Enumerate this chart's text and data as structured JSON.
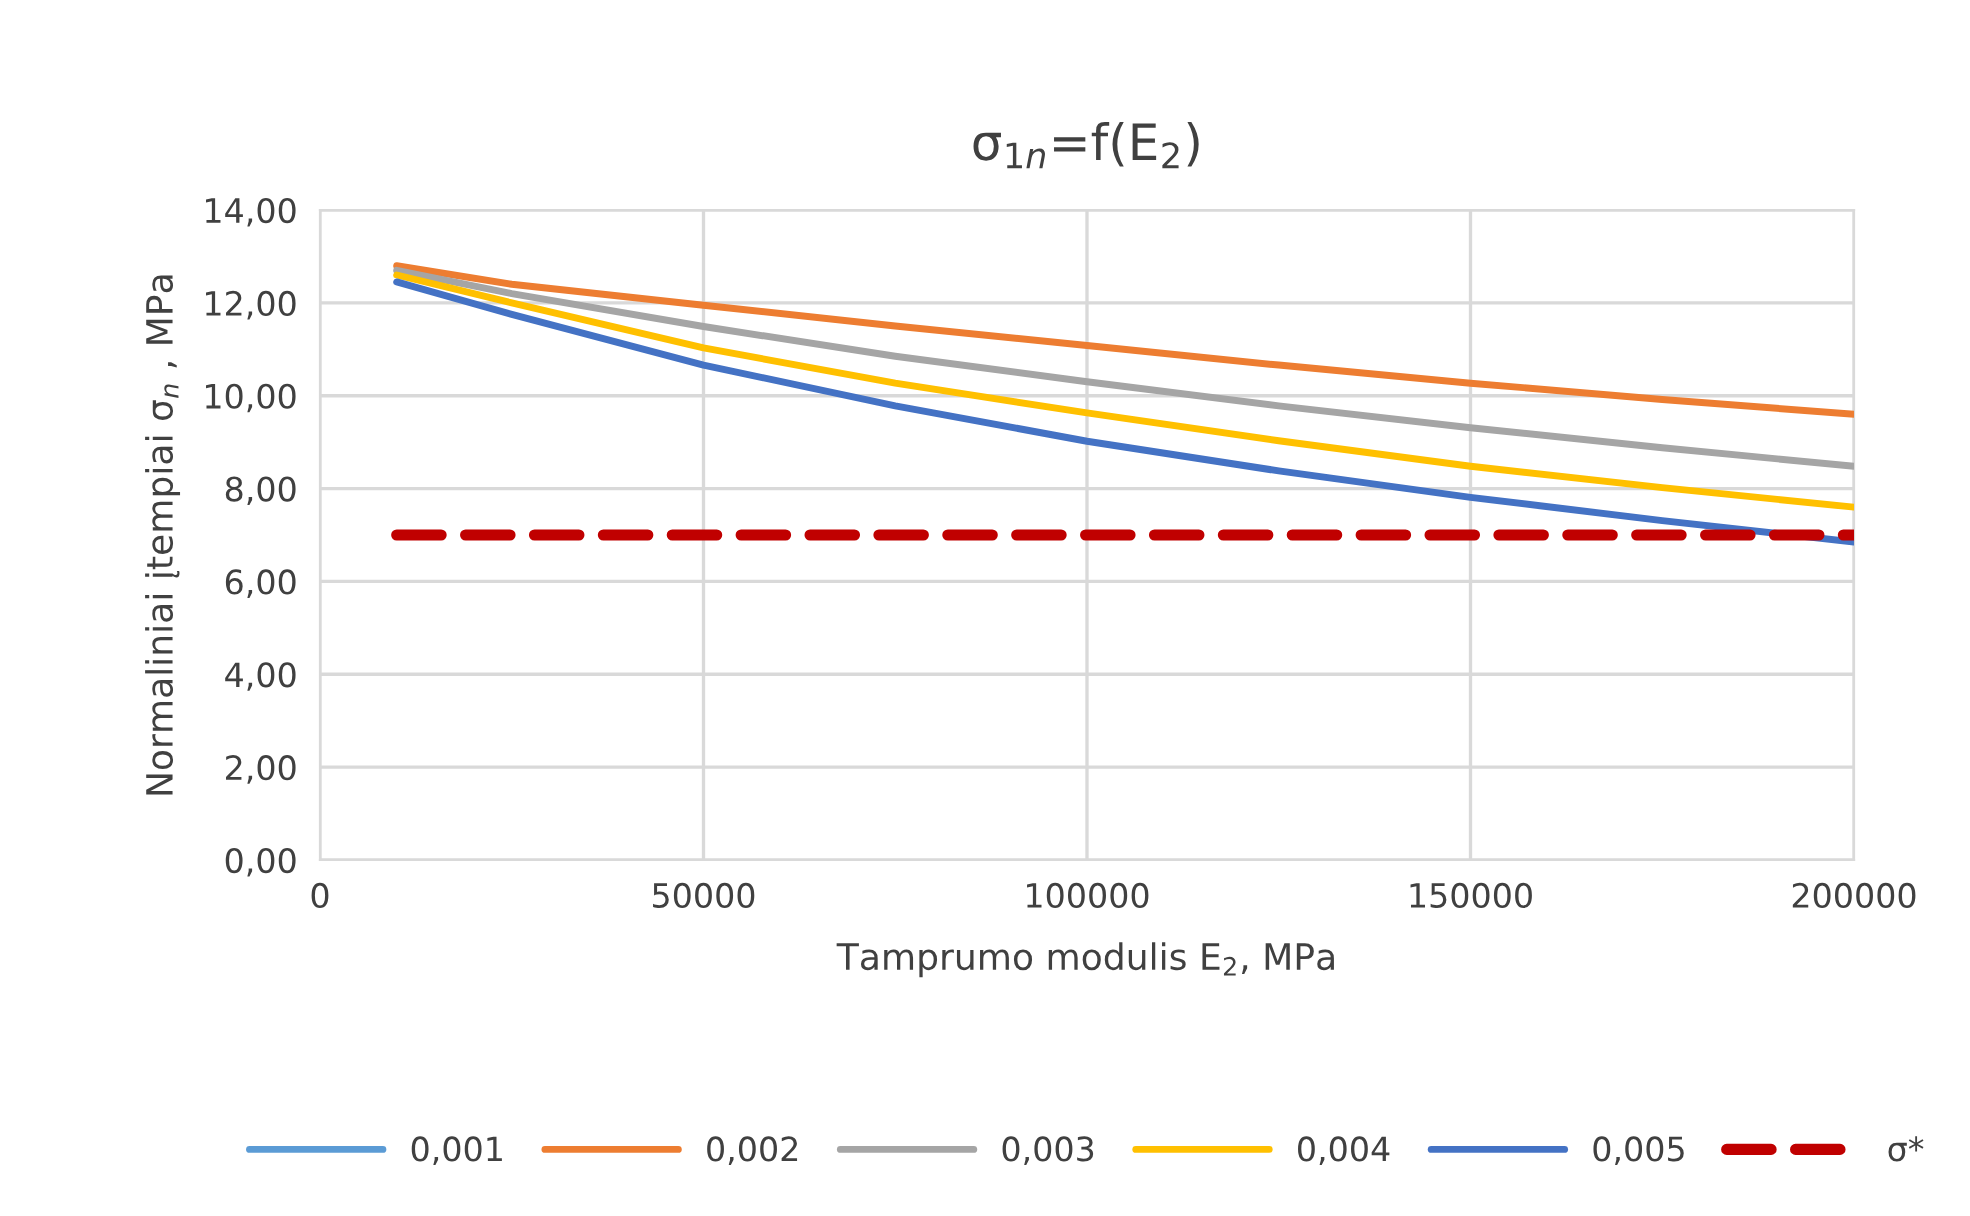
{
  "chart_data": {
    "type": "line",
    "title": "σ$_{1n}$=f(E$_{2}$)",
    "xlabel": "Tamprumo modulis E$_{2}$, MPa",
    "ylabel": "Normaliniai įtempiai σ$_{n}$ , MPa",
    "x": [
      10000,
      25000,
      50000,
      75000,
      100000,
      125000,
      150000,
      175000,
      200000
    ],
    "series": [
      {
        "name": "0,001",
        "color": "#5b9bd5",
        "values": [
          null,
          null,
          null,
          null,
          null,
          null,
          null,
          null,
          null
        ]
      },
      {
        "name": "0,002",
        "color": "#ed7d31",
        "values": [
          12.8,
          12.4,
          11.95,
          11.5,
          11.08,
          10.66,
          10.27,
          9.92,
          9.6
        ]
      },
      {
        "name": "0,003",
        "color": "#a5a5a5",
        "values": [
          12.7,
          12.2,
          11.49,
          10.85,
          10.3,
          9.78,
          9.31,
          8.88,
          8.48
        ]
      },
      {
        "name": "0,004",
        "color": "#ffc000",
        "values": [
          12.6,
          12.0,
          11.03,
          10.27,
          9.63,
          9.03,
          8.48,
          8.02,
          7.6
        ]
      },
      {
        "name": "0,005",
        "color": "#4472c4",
        "values": [
          12.45,
          11.75,
          10.66,
          9.78,
          9.02,
          8.38,
          7.81,
          7.31,
          6.85
        ]
      },
      {
        "name": "σ*",
        "color": "#c00000",
        "line_style": "dashed",
        "values": [
          7,
          7,
          7,
          7,
          7,
          7,
          7,
          7,
          7
        ]
      }
    ],
    "xlim": [
      0,
      200000
    ],
    "xticks": [
      0,
      50000,
      100000,
      150000,
      200000
    ],
    "ylim": [
      0,
      14
    ],
    "yticks": [
      {
        "value": 0,
        "label": "0,00"
      },
      {
        "value": 2,
        "label": "2,00"
      },
      {
        "value": 4,
        "label": "4,00"
      },
      {
        "value": 6,
        "label": "6,00"
      },
      {
        "value": 8,
        "label": "8,00"
      },
      {
        "value": 10,
        "label": "10,00"
      },
      {
        "value": 12,
        "label": "12,00"
      },
      {
        "value": 14,
        "label": "14,00"
      }
    ],
    "grid": true,
    "legend": "bottom",
    "marker": "none",
    "line_style": "solid"
  }
}
